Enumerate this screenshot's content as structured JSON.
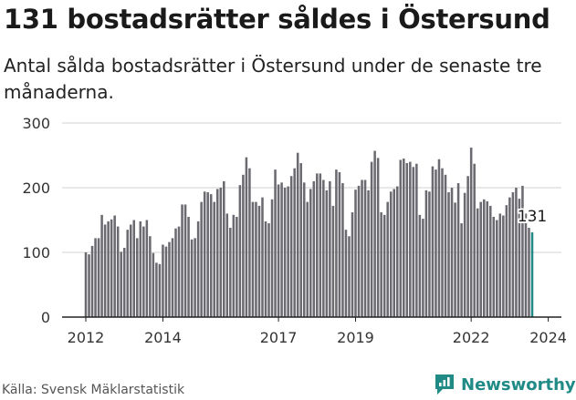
{
  "header": {
    "title": "131 bostadsrätter såldes i Östersund",
    "subtitle": "Antal sålda bostadsrätter i Östersund under de senaste tre månaderna."
  },
  "footer": {
    "source": "Källa: Svensk Mäklarstatistik",
    "brand": "Newsworthy"
  },
  "colors": {
    "bar": "#6b6a70",
    "highlight": "#1f8a86",
    "grid": "#d0d0d0",
    "axis": "#222222"
  },
  "chart_data": {
    "type": "bar",
    "title": "131 bostadsrätter såldes i Östersund",
    "xlabel": "",
    "ylabel": "",
    "ylim": [
      0,
      300
    ],
    "yticks": [
      0,
      100,
      200,
      300
    ],
    "xticks": [
      "2012",
      "2014",
      "2017",
      "2019",
      "2022",
      "2024"
    ],
    "xtick_positions": [
      2012,
      2014,
      2017,
      2019,
      2022,
      2024
    ],
    "start_year": 2012,
    "start_month": 1,
    "highlight_label": "131",
    "values": [
      100,
      97,
      110,
      122,
      122,
      158,
      143,
      148,
      151,
      157,
      140,
      101,
      107,
      135,
      143,
      150,
      122,
      148,
      140,
      150,
      125,
      99,
      84,
      82,
      112,
      109,
      116,
      122,
      137,
      140,
      174,
      174,
      155,
      120,
      122,
      148,
      178,
      194,
      193,
      190,
      178,
      198,
      200,
      210,
      160,
      138,
      158,
      155,
      204,
      220,
      247,
      230,
      178,
      178,
      172,
      185,
      148,
      145,
      182,
      228,
      205,
      208,
      200,
      202,
      218,
      230,
      254,
      238,
      208,
      178,
      198,
      210,
      222,
      222,
      212,
      196,
      210,
      172,
      228,
      224,
      207,
      135,
      125,
      162,
      197,
      203,
      212,
      212,
      196,
      240,
      257,
      246,
      162,
      158,
      178,
      194,
      198,
      202,
      243,
      245,
      238,
      240,
      232,
      237,
      158,
      152,
      196,
      194,
      233,
      228,
      244,
      230,
      220,
      193,
      200,
      177,
      207,
      145,
      192,
      218,
      262,
      237,
      168,
      178,
      182,
      179,
      172,
      155,
      150,
      160,
      157,
      173,
      185,
      193,
      200,
      183,
      203,
      160,
      138,
      131
    ]
  }
}
